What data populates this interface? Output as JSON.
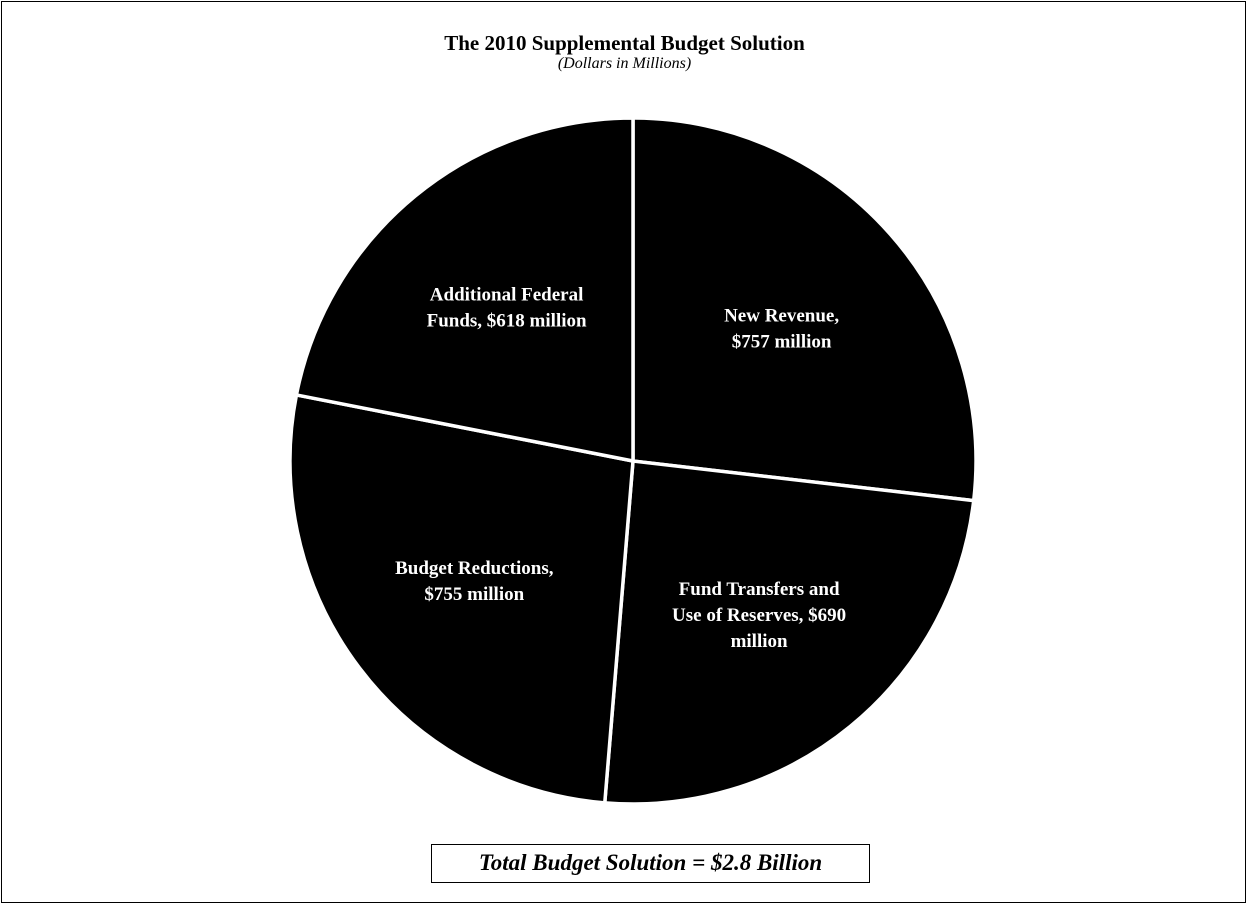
{
  "chart_data": {
    "type": "pie",
    "title": "The 2010 Supplemental Budget Solution",
    "subtitle": "(Dollars in Millions)",
    "slices": [
      {
        "key": "new-revenue",
        "label_lines": [
          "New Revenue,",
          "$757 million"
        ],
        "value": 757
      },
      {
        "key": "fund-transfers",
        "label_lines": [
          "Fund Transfers and",
          "Use of Reserves, $690",
          "million"
        ],
        "value": 690
      },
      {
        "key": "budget-reductions",
        "label_lines": [
          "Budget Reductions,",
          "$755  million"
        ],
        "value": 755
      },
      {
        "key": "federal-funds",
        "label_lines": [
          "Additional Federal",
          "Funds, $618 million"
        ],
        "value": 618
      }
    ],
    "total_note": "Total Budget Solution = $2.8 Billion",
    "colors": {
      "slice_fill": "#000000",
      "slice_border": "#ffffff",
      "label_text": "#ffffff"
    }
  }
}
